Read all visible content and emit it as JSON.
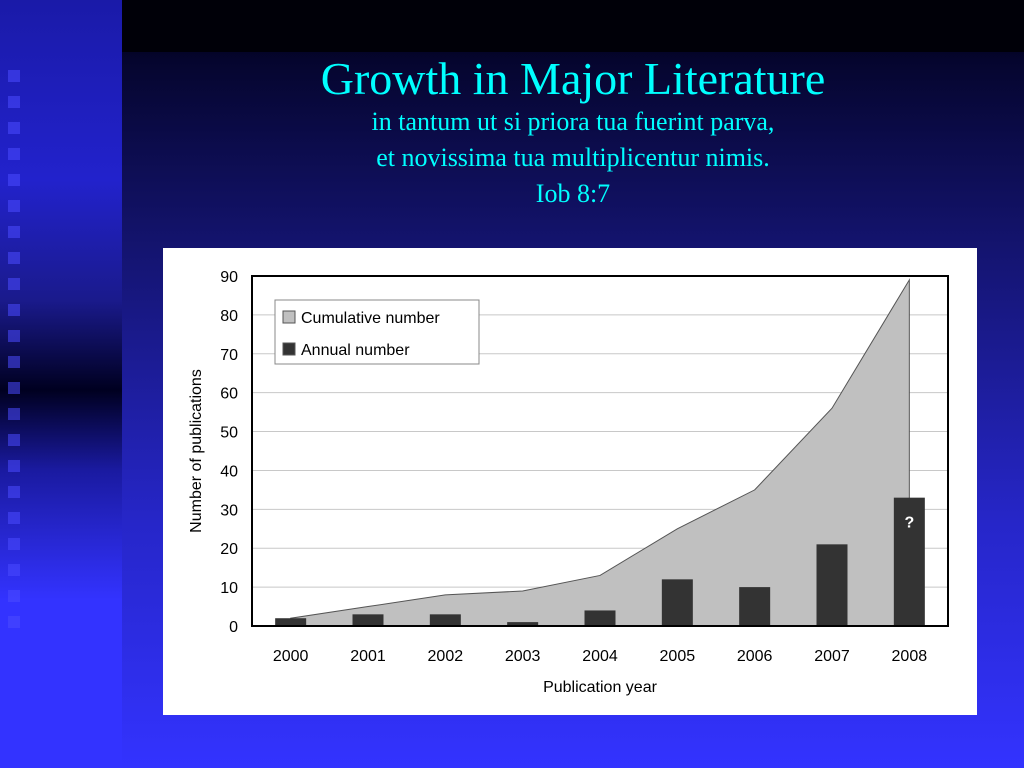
{
  "slide": {
    "title": "Growth in Major Literature",
    "quote_lines": [
      "in tantum ut si priora tua fuerint parva,",
      "et novissima tua multiplicentur nimis.",
      "Iob 8:7"
    ]
  },
  "colors": {
    "title": "#00ffff",
    "cumulative_fill": "#c0c0c0",
    "annual_fill": "#333333"
  },
  "chart_data": {
    "type": "bar",
    "x": [
      2000,
      2001,
      2002,
      2003,
      2004,
      2005,
      2006,
      2007,
      2008
    ],
    "series": [
      {
        "name": "Cumulative number",
        "type": "area",
        "values": [
          2,
          5,
          8,
          9,
          13,
          25,
          35,
          56,
          89
        ]
      },
      {
        "name": "Annual number",
        "type": "bar",
        "values": [
          2,
          3,
          3,
          1,
          4,
          12,
          10,
          21,
          33
        ]
      }
    ],
    "annotations": [
      {
        "x": 2008,
        "text": "?"
      }
    ],
    "xlabel": "Publication year",
    "ylabel": "Number of publications",
    "ylim": [
      0,
      90
    ],
    "yticks": [
      0,
      10,
      20,
      30,
      40,
      50,
      60,
      70,
      80,
      90
    ],
    "grid": true,
    "legend": "top-left"
  }
}
